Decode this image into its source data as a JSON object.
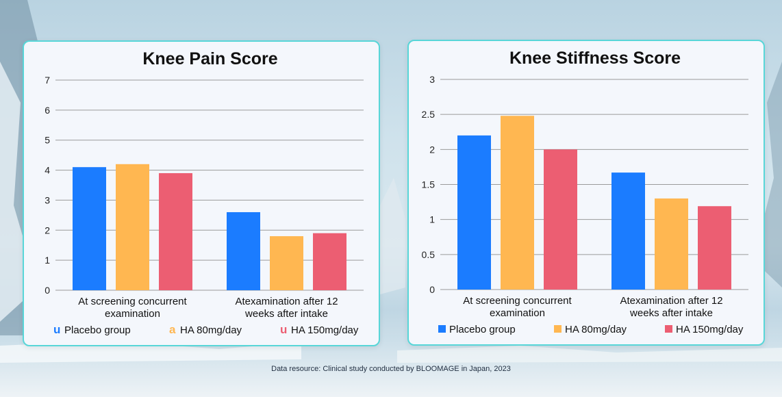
{
  "source_note": "Data resource: Clinical study conducted by BLOOMAGE in Japan, 2023",
  "colors": {
    "placebo": "#1b7cff",
    "ha80": "#ffb751",
    "ha150": "#ec5e72",
    "grid": "#9a9a9a",
    "panel_border": "#58d6d8"
  },
  "chart_data": [
    {
      "type": "bar",
      "title": "Knee Pain Score",
      "categories": [
        [
          "At screening concurrent",
          "examination"
        ],
        [
          "Atexamination after 12",
          "weeks after intake"
        ]
      ],
      "series": [
        {
          "name": "Placebo group",
          "values": [
            4.1,
            2.6
          ]
        },
        {
          "name": "HA 80mg/day",
          "values": [
            4.2,
            1.8
          ]
        },
        {
          "name": "HA 150mg/day",
          "values": [
            3.9,
            1.9
          ]
        }
      ],
      "ylim": [
        0,
        7
      ],
      "yticks": [
        "0",
        "1",
        "2",
        "3",
        "4",
        "5",
        "6",
        "7"
      ],
      "grid": true,
      "legend_position": "bottom",
      "legend_markers": [
        "u",
        "a",
        "u"
      ]
    },
    {
      "type": "bar",
      "title": "Knee Stiffness Score",
      "categories": [
        [
          "At screening concurrent",
          "examination"
        ],
        [
          "Atexamination after 12",
          "weeks after intake"
        ]
      ],
      "series": [
        {
          "name": "Placebo group",
          "values": [
            2.2,
            1.67
          ]
        },
        {
          "name": "HA 80mg/day",
          "values": [
            2.48,
            1.3
          ]
        },
        {
          "name": "HA 150mg/day",
          "values": [
            2.0,
            1.19
          ]
        }
      ],
      "ylim": [
        0,
        3
      ],
      "yticks": [
        "0",
        "0.5",
        "1",
        "1.5",
        "2",
        "2.5",
        "3"
      ],
      "grid": true,
      "legend_position": "bottom",
      "legend_markers": [
        "square",
        "square",
        "square"
      ]
    }
  ]
}
